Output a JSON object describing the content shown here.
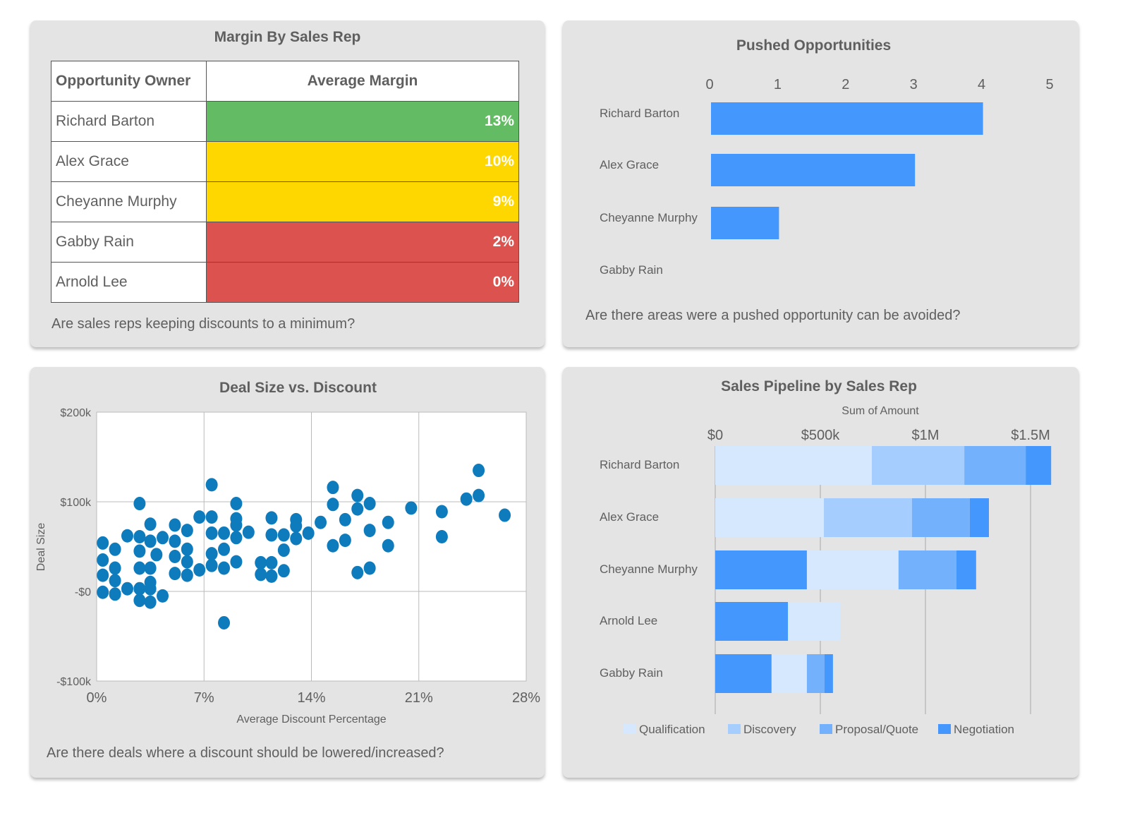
{
  "margin_card": {
    "title": "Margin By Sales Rep",
    "headers": [
      "Opportunity Owner",
      "Average Margin"
    ],
    "rows": [
      {
        "owner": "Richard Barton",
        "margin": "13%",
        "color": "#63bb63"
      },
      {
        "owner": "Alex Grace",
        "margin": "10%",
        "color": "#ffd700"
      },
      {
        "owner": "Cheyanne Murphy",
        "margin": "9%",
        "color": "#ffd700"
      },
      {
        "owner": "Gabby Rain",
        "margin": "2%",
        "color": "#db524e"
      },
      {
        "owner": "Arnold Lee",
        "margin": "0%",
        "color": "#db524e"
      }
    ],
    "question": "Are sales reps keeping discounts to a minimum?"
  },
  "pushed_card": {
    "title": "Pushed Opportunities",
    "question": "Are there areas were a pushed opportunity can be avoided?"
  },
  "scatter_card": {
    "title": "Deal Size vs. Discount",
    "question": "Are there deals where a discount should be lowered/increased?"
  },
  "pipeline_card": {
    "title": "Sales Pipeline by Sales Rep",
    "question": ""
  },
  "chart_data": [
    {
      "type": "bar",
      "orientation": "horizontal",
      "title": "Pushed Opportunities",
      "categories": [
        "Richard Barton",
        "Alex Grace",
        "Cheyanne Murphy",
        "Gabby Rain"
      ],
      "values": [
        4,
        3,
        1,
        0
      ],
      "xlim": [
        0,
        5
      ],
      "xticks": [
        "0",
        "1",
        "2",
        "3",
        "4",
        "5"
      ],
      "color": "#4397fd",
      "grid": false
    },
    {
      "type": "scatter",
      "title": "Deal Size vs. Discount",
      "xlabel": "Average Discount Percentage",
      "ylabel": "Deal Size",
      "xlim": [
        0,
        28
      ],
      "ylim": [
        -100,
        200
      ],
      "xticks": [
        {
          "v": 0,
          "label": "0%"
        },
        {
          "v": 7,
          "label": "7%"
        },
        {
          "v": 14,
          "label": "14%"
        },
        {
          "v": 21,
          "label": "21%"
        },
        {
          "v": 28,
          "label": "28%"
        }
      ],
      "yticks": [
        {
          "v": 200,
          "label": "$200k"
        },
        {
          "v": 100,
          "label": "$100k"
        },
        {
          "v": 0,
          "label": "-$0"
        },
        {
          "v": -100,
          "label": "-$100k"
        }
      ],
      "grid": true,
      "color": "#0e7bbd",
      "points": [
        [
          0.4,
          54
        ],
        [
          1.2,
          47
        ],
        [
          0.4,
          35
        ],
        [
          1.2,
          26
        ],
        [
          0.4,
          18
        ],
        [
          1.2,
          12
        ],
        [
          0.4,
          -1
        ],
        [
          1.2,
          -3
        ],
        [
          2.0,
          62
        ],
        [
          2.8,
          98
        ],
        [
          2.8,
          61
        ],
        [
          3.5,
          75
        ],
        [
          3.5,
          56
        ],
        [
          2.8,
          45
        ],
        [
          3.9,
          41
        ],
        [
          2.8,
          26
        ],
        [
          3.5,
          26
        ],
        [
          2.0,
          3
        ],
        [
          2.8,
          3
        ],
        [
          3.5,
          10
        ],
        [
          3.5,
          3
        ],
        [
          2.8,
          -10
        ],
        [
          3.5,
          -12
        ],
        [
          4.3,
          60
        ],
        [
          4.3,
          -5
        ],
        [
          5.1,
          74
        ],
        [
          5.1,
          56
        ],
        [
          5.1,
          39
        ],
        [
          5.1,
          20
        ],
        [
          5.9,
          68
        ],
        [
          5.9,
          47
        ],
        [
          5.9,
          33
        ],
        [
          5.9,
          18
        ],
        [
          6.7,
          83
        ],
        [
          6.7,
          24
        ],
        [
          7.5,
          119
        ],
        [
          7.5,
          83
        ],
        [
          7.5,
          65
        ],
        [
          7.5,
          42
        ],
        [
          7.5,
          29
        ],
        [
          8.3,
          65
        ],
        [
          8.3,
          47
        ],
        [
          8.3,
          26
        ],
        [
          8.3,
          -35
        ],
        [
          9.1,
          98
        ],
        [
          9.1,
          81
        ],
        [
          9.1,
          74
        ],
        [
          9.1,
          60
        ],
        [
          9.1,
          33
        ],
        [
          9.9,
          66
        ],
        [
          10.7,
          32
        ],
        [
          10.7,
          19
        ],
        [
          11.4,
          82
        ],
        [
          11.4,
          63
        ],
        [
          11.4,
          32
        ],
        [
          11.4,
          17
        ],
        [
          12.2,
          63
        ],
        [
          12.2,
          46
        ],
        [
          12.2,
          23
        ],
        [
          13.0,
          80
        ],
        [
          13.0,
          73
        ],
        [
          13.0,
          59
        ],
        [
          13.8,
          65
        ],
        [
          14.6,
          77
        ],
        [
          15.4,
          116
        ],
        [
          15.4,
          97
        ],
        [
          15.4,
          51
        ],
        [
          16.2,
          80
        ],
        [
          16.2,
          57
        ],
        [
          17.0,
          107
        ],
        [
          17.0,
          92
        ],
        [
          17.0,
          21
        ],
        [
          17.8,
          98
        ],
        [
          17.8,
          68
        ],
        [
          17.8,
          26
        ],
        [
          19.0,
          77
        ],
        [
          19.0,
          51
        ],
        [
          20.5,
          93
        ],
        [
          22.5,
          89
        ],
        [
          22.5,
          61
        ],
        [
          24.1,
          103
        ],
        [
          24.9,
          135
        ],
        [
          24.9,
          107
        ],
        [
          26.6,
          85
        ]
      ]
    },
    {
      "type": "bar",
      "orientation": "horizontal",
      "stacked": true,
      "title": "Sales Pipeline by Sales Rep",
      "xlabel": "Sum of Amount",
      "xlim": [
        0,
        1600000
      ],
      "xticks": [
        {
          "v": 0,
          "label": "$0"
        },
        {
          "v": 500000,
          "label": "$500k"
        },
        {
          "v": 1000000,
          "label": "$1M"
        },
        {
          "v": 1500000,
          "label": "$1.5M"
        }
      ],
      "legend": {
        "position": "bottom"
      },
      "stage_colors": {
        "Qualification": "#d6e8fd",
        "Discovery": "#a5cdfd",
        "Proposal/Quote": "#73b1fd",
        "Negotiation": "#4397fd"
      },
      "legend_entries": [
        "Qualification",
        "Discovery",
        "Proposal/Quote",
        "Negotiation"
      ],
      "categories": [
        "Richard Barton",
        "Alex Grace",
        "Cheyanne Murphy",
        "Arnold Lee",
        "Gabby Rain"
      ],
      "segments": [
        [
          {
            "stage": "Qualification",
            "value": 745000
          },
          {
            "stage": "Discovery",
            "value": 440000
          },
          {
            "stage": "Proposal/Quote",
            "value": 292000
          },
          {
            "stage": "Negotiation",
            "value": 121000
          }
        ],
        [
          {
            "stage": "Qualification",
            "value": 517000
          },
          {
            "stage": "Discovery",
            "value": 419000
          },
          {
            "stage": "Proposal/Quote",
            "value": 275000
          },
          {
            "stage": "Negotiation",
            "value": 91000
          }
        ],
        [
          {
            "stage": "Negotiation",
            "value": 436000
          },
          {
            "stage": "Qualification",
            "value": 436000
          },
          {
            "stage": "Proposal/Quote",
            "value": 275000
          },
          {
            "stage": "Negotiation",
            "value": 94000
          }
        ],
        [
          {
            "stage": "Negotiation",
            "value": 346000
          },
          {
            "stage": "Qualification",
            "value": 248000
          }
        ],
        [
          {
            "stage": "Negotiation",
            "value": 268000
          },
          {
            "stage": "Qualification",
            "value": 168000
          },
          {
            "stage": "Proposal/Quote",
            "value": 84000
          },
          {
            "stage": "Negotiation",
            "value": 40000
          }
        ]
      ]
    }
  ]
}
